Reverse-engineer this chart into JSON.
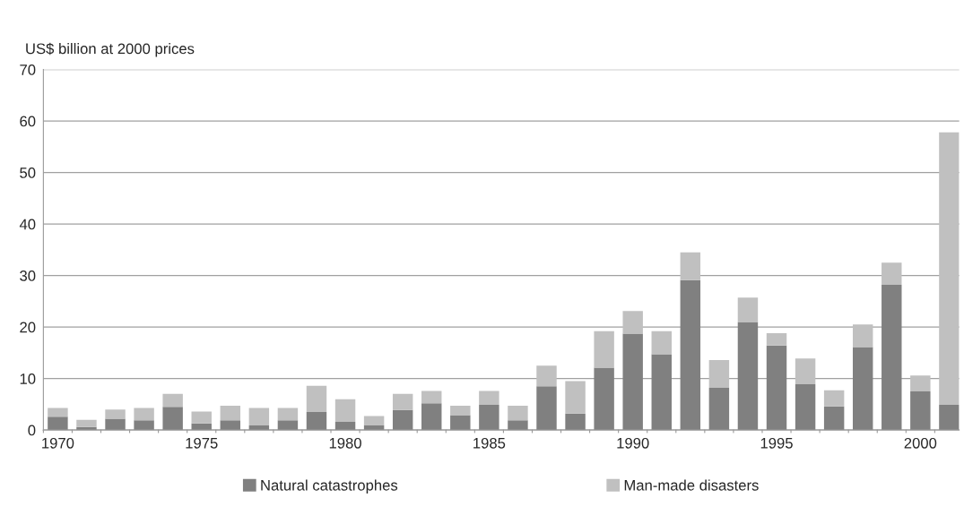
{
  "chart_data": {
    "type": "bar",
    "stacked": true,
    "ylabel": "US$ billion at 2000 prices",
    "categories": [
      "1970",
      null,
      null,
      null,
      null,
      "1975",
      null,
      null,
      null,
      null,
      "1980",
      null,
      null,
      null,
      null,
      "1985",
      null,
      null,
      null,
      null,
      "1990",
      null,
      null,
      null,
      null,
      "1995",
      null,
      null,
      null,
      null,
      "2000",
      null
    ],
    "series": [
      {
        "name": "Natural catastrophes",
        "color": "#808080",
        "values": [
          2.6,
          0.6,
          2.2,
          1.9,
          4.5,
          1.3,
          1.9,
          0.9,
          1.9,
          3.5,
          1.6,
          0.9,
          3.9,
          5.2,
          2.9,
          4.9,
          1.9,
          8.5,
          3.2,
          12.1,
          18.7,
          14.7,
          29.1,
          8.2,
          21.0,
          16.4,
          8.9,
          4.6,
          16.1,
          28.2,
          7.5,
          4.9
        ]
      },
      {
        "name": "Man-made disasters",
        "color": "#c0c0c0",
        "values": [
          1.7,
          1.4,
          1.8,
          2.4,
          2.5,
          2.3,
          2.8,
          3.4,
          2.4,
          5.1,
          4.4,
          1.8,
          3.1,
          2.4,
          1.8,
          2.7,
          2.8,
          4.0,
          6.3,
          7.1,
          4.4,
          4.5,
          5.4,
          5.4,
          4.7,
          2.4,
          5.0,
          3.1,
          4.4,
          4.3,
          3.1,
          52.9
        ]
      }
    ],
    "ylim": [
      0,
      70
    ],
    "yticks": [
      0,
      10,
      20,
      30,
      40,
      50,
      60,
      70
    ],
    "grid": "y",
    "legend": "bottom"
  }
}
